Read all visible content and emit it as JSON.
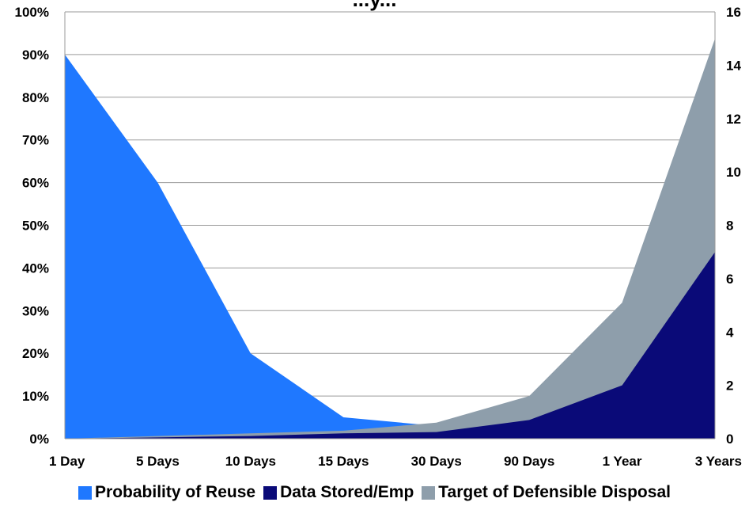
{
  "chart_data": {
    "type": "area",
    "title": "...y...",
    "categories": [
      "1 Day",
      "5 Days",
      "10 Days",
      "15 Days",
      "30 Days",
      "90 Days",
      "1 Year",
      "3 Years"
    ],
    "series": [
      {
        "name": "Probability of Reuse",
        "axis": "left",
        "unit": "percent",
        "color": "#1f78ff",
        "values": [
          90,
          60,
          20,
          5,
          3,
          0,
          0,
          0
        ]
      },
      {
        "name": "Target of Defensible Disposal",
        "axis": "right",
        "color": "#8e9eab",
        "values": [
          0,
          0.1,
          0.2,
          0.3,
          0.6,
          1.6,
          5.1,
          15.0
        ]
      },
      {
        "name": "Data Stored/Emp",
        "axis": "right",
        "color": "#0a0a78",
        "values": [
          0,
          0.05,
          0.1,
          0.2,
          0.25,
          0.7,
          2.0,
          7.0
        ]
      }
    ],
    "left_axis": {
      "ylim": [
        0,
        100
      ],
      "tick_labels": [
        "0%",
        "10%",
        "20%",
        "30%",
        "40%",
        "50%",
        "60%",
        "70%",
        "80%",
        "90%",
        "100%"
      ]
    },
    "right_axis": {
      "ylim": [
        0,
        16
      ],
      "tick_labels": [
        "0",
        "2",
        "4",
        "6",
        "8",
        "10",
        "12",
        "14",
        "16"
      ]
    },
    "grid": true,
    "legend_position": "bottom",
    "legend": [
      {
        "label": "Probability of Reuse",
        "color": "#1f78ff"
      },
      {
        "label": "Data Stored/Emp",
        "color": "#0a0a78"
      },
      {
        "label": "Target of Defensible Disposal",
        "color": "#8e9eab"
      }
    ]
  }
}
